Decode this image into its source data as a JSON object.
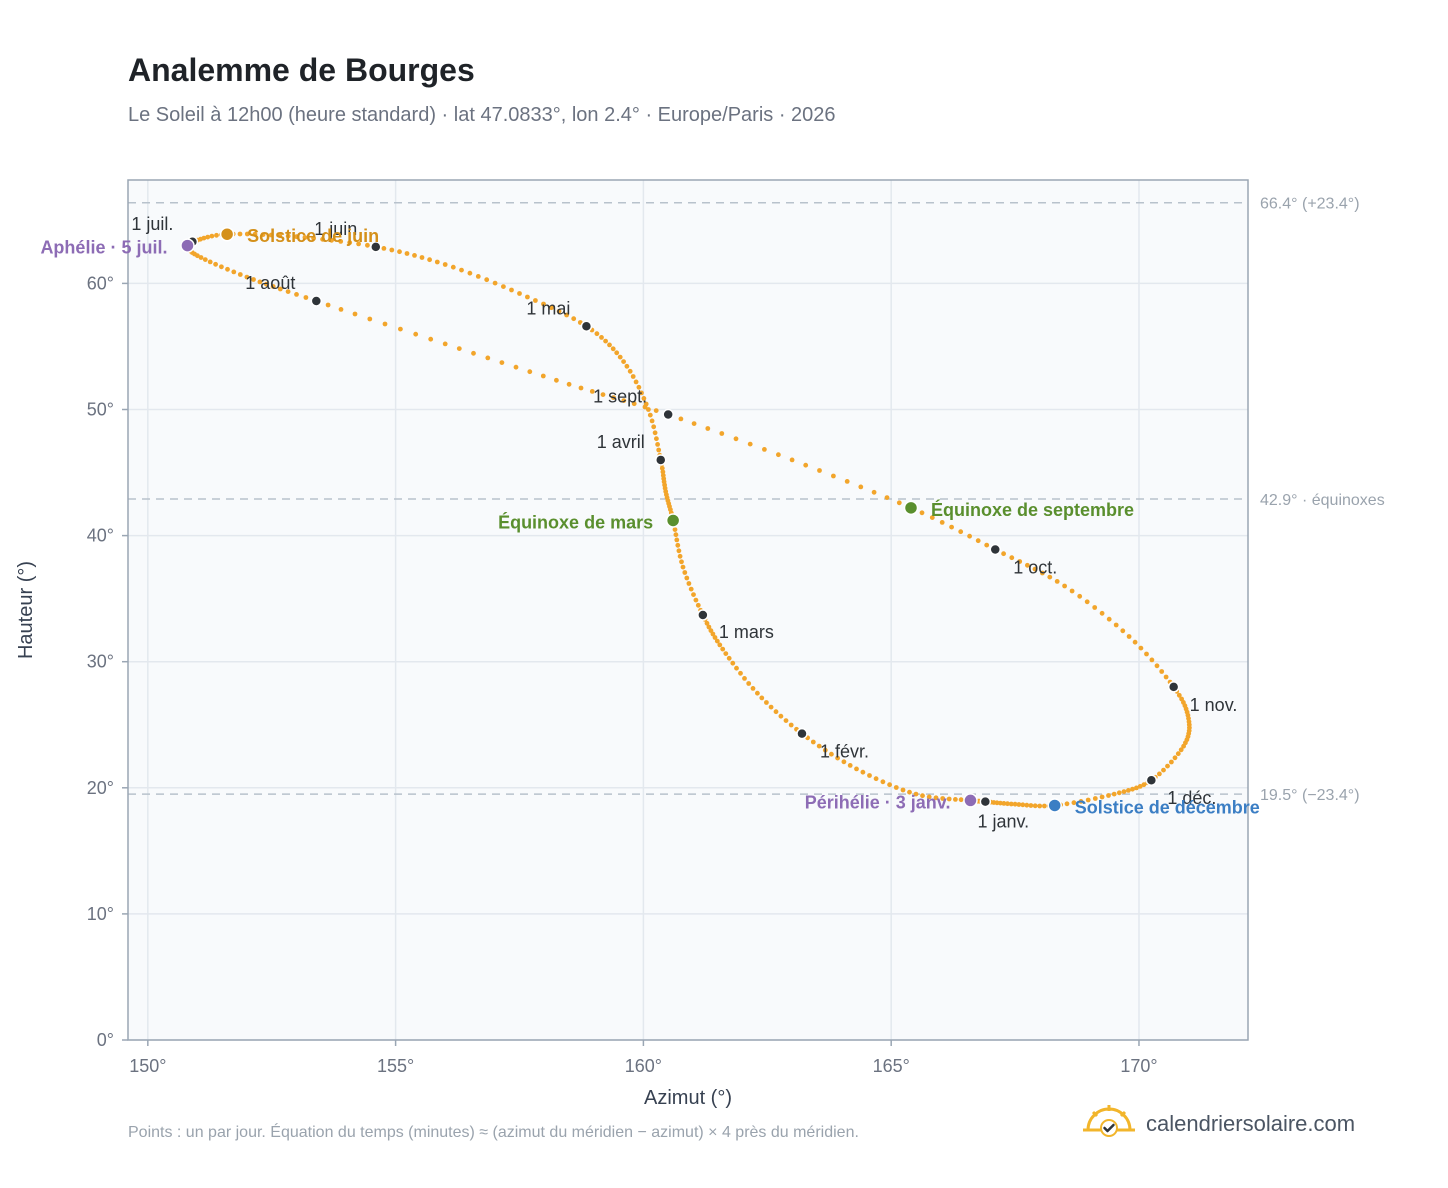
{
  "title": "Analemme de Bourges",
  "subtitle": "Le Soleil à 12h00 (heure standard) · lat 47.0833°, lon 2.4° · Europe/Paris · 2026",
  "footnote": "Points : un par jour. Équation du temps (minutes) ≈ (azimut du méridien − azimut) × 4 près du méridien.",
  "brand": {
    "name": "calendriersolaire.com",
    "icon": "sun-check-icon"
  },
  "colors": {
    "curve": "#f2a52b",
    "month_marker": "#2f3439",
    "solstice_june": "#d4901a",
    "solstice_december": "#3b7ec4",
    "equinox": "#5a8f2e",
    "perihelion_aphelion": "#8d6cb5",
    "plot_bg": "#f8fafc",
    "grid": "#e3e8ee",
    "ref_line": "#b8c2cc"
  },
  "chart_data": {
    "type": "scatter",
    "xlabel": "Azimut (°)",
    "ylabel": "Hauteur (°)",
    "xlim": [
      149.6,
      172.2
    ],
    "ylim": [
      0,
      68.2
    ],
    "xticks": [
      "150°",
      "155°",
      "160°",
      "165°",
      "170°"
    ],
    "xtick_values": [
      150,
      155,
      160,
      165,
      170
    ],
    "yticks": [
      "0°",
      "10°",
      "20°",
      "30°",
      "40°",
      "50°",
      "60°"
    ],
    "ytick_values": [
      0,
      10,
      20,
      30,
      40,
      50,
      60
    ],
    "grid": true,
    "reference_lines": [
      {
        "value": 66.4,
        "label": "66.4° (+23.4°)"
      },
      {
        "value": 42.9,
        "label": "42.9° · équinoxes"
      },
      {
        "value": 19.5,
        "label": "19.5° (−23.4°)"
      }
    ],
    "month_markers": [
      {
        "label": "1 janv.",
        "az": 166.9,
        "alt": 18.9
      },
      {
        "label": "1 févr.",
        "az": 163.2,
        "alt": 24.3
      },
      {
        "label": "1 mars",
        "az": 161.2,
        "alt": 33.7
      },
      {
        "label": "1 avril",
        "az": 160.35,
        "alt": 46.0
      },
      {
        "label": "1 mai",
        "az": 158.85,
        "alt": 56.6
      },
      {
        "label": "1 juin",
        "az": 154.6,
        "alt": 62.9
      },
      {
        "label": "1 juil.",
        "az": 150.9,
        "alt": 63.3
      },
      {
        "label": "1 août",
        "az": 153.4,
        "alt": 58.6
      },
      {
        "label": "1 sept.",
        "az": 160.5,
        "alt": 49.6
      },
      {
        "label": "1 oct.",
        "az": 167.1,
        "alt": 38.9
      },
      {
        "label": "1 nov.",
        "az": 170.7,
        "alt": 28.0
      },
      {
        "label": "1 déc.",
        "az": 170.25,
        "alt": 20.6
      }
    ],
    "events": [
      {
        "label": "Solstice de juin",
        "az": 151.6,
        "alt": 63.9,
        "kind": "solstice_june"
      },
      {
        "label": "Solstice de décembre",
        "az": 168.3,
        "alt": 18.6,
        "kind": "solstice_december"
      },
      {
        "label": "Équinoxe de mars",
        "az": 160.6,
        "alt": 41.2,
        "kind": "equinox"
      },
      {
        "label": "Équinoxe de septembre",
        "az": 165.4,
        "alt": 42.2,
        "kind": "equinox"
      },
      {
        "label": "Périhélie · 3 janv.",
        "az": 166.6,
        "alt": 19.0,
        "kind": "perihelion_aphelion"
      },
      {
        "label": "Aphélie · 5 juil.",
        "az": 150.8,
        "alt": 63.0,
        "kind": "perihelion_aphelion"
      }
    ],
    "series": [
      {
        "points_per_day": 1,
        "points": [
          [
            166.9,
            18.9
          ],
          [
            166.6,
            19.0
          ],
          [
            165.5,
            19.5
          ],
          [
            164.3,
            21.5
          ],
          [
            163.2,
            24.3
          ],
          [
            162.3,
            27.5
          ],
          [
            161.6,
            31.0
          ],
          [
            161.2,
            33.7
          ],
          [
            160.8,
            37.5
          ],
          [
            160.6,
            41.2
          ],
          [
            160.45,
            43.5
          ],
          [
            160.35,
            46.0
          ],
          [
            160.1,
            50.0
          ],
          [
            159.6,
            53.8
          ],
          [
            158.85,
            56.6
          ],
          [
            157.5,
            59.2
          ],
          [
            156.0,
            61.5
          ],
          [
            154.6,
            62.9
          ],
          [
            153.0,
            63.7
          ],
          [
            151.6,
            63.9
          ],
          [
            150.9,
            63.3
          ],
          [
            150.8,
            63.0
          ],
          [
            151.0,
            62.2
          ],
          [
            152.0,
            60.5
          ],
          [
            153.4,
            58.6
          ],
          [
            156.0,
            55.2
          ],
          [
            158.5,
            52.0
          ],
          [
            160.5,
            49.6
          ],
          [
            163.0,
            46.0
          ],
          [
            165.4,
            42.2
          ],
          [
            167.1,
            38.9
          ],
          [
            168.5,
            36.0
          ],
          [
            169.8,
            32.0
          ],
          [
            170.7,
            28.0
          ],
          [
            171.0,
            25.5
          ],
          [
            170.9,
            23.3
          ],
          [
            170.25,
            20.6
          ],
          [
            169.5,
            19.5
          ],
          [
            168.3,
            18.6
          ],
          [
            167.5,
            18.7
          ],
          [
            166.9,
            18.9
          ]
        ]
      }
    ]
  }
}
